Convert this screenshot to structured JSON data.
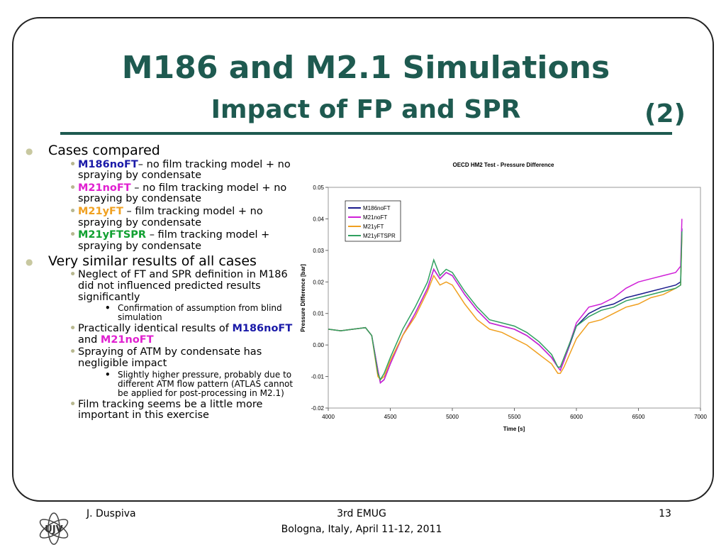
{
  "header": {
    "title": "M186 and M2.1 Simulations",
    "subtitle": "Impact of FP and SPR",
    "part": "(2)"
  },
  "bullets": [
    {
      "level": 1,
      "runs": [
        {
          "text": "Cases compared"
        }
      ]
    },
    {
      "level": 2,
      "runs": [
        {
          "text": "M186noFT",
          "color": "#1a1aa8"
        },
        {
          "text": "– no film tracking model + no spraying by condensate"
        }
      ]
    },
    {
      "level": 2,
      "runs": [
        {
          "text": "M21noFT",
          "color": "#e020d0"
        },
        {
          "text": " – no film tracking model + no spraying by condensate"
        }
      ]
    },
    {
      "level": 2,
      "runs": [
        {
          "text": "M21yFT",
          "color": "#f0a020"
        },
        {
          "text": " – film tracking model + no spraying by condensate"
        }
      ]
    },
    {
      "level": 2,
      "runs": [
        {
          "text": "M21yFTSPR",
          "color": "#10a030"
        },
        {
          "text": " – film tracking model + spraying by condensate"
        }
      ]
    },
    {
      "level": 1,
      "runs": [
        {
          "text": "Very similar results of all cases"
        }
      ]
    },
    {
      "level": 2,
      "runs": [
        {
          "text": "Neglect of FT and SPR definition in M186 did not influenced predicted results significantly"
        }
      ]
    },
    {
      "level": 3,
      "runs": [
        {
          "text": "Confirmation of assumption from blind simulation"
        }
      ]
    },
    {
      "level": 2,
      "runs": [
        {
          "text": "Practically identical results of "
        },
        {
          "text": "M186noFT",
          "color": "#1a1aa8"
        },
        {
          "text": " and "
        },
        {
          "text": "M21noFT",
          "color": "#e020d0"
        }
      ]
    },
    {
      "level": 2,
      "runs": [
        {
          "text": "Spraying of ATM by condensate has negligible impact"
        }
      ]
    },
    {
      "level": 3,
      "runs": [
        {
          "text": "Slightly higher pressure, probably due to different ATM flow pattern (ATLAS cannot be applied for post-processing in M2.1)"
        }
      ]
    },
    {
      "level": 2,
      "runs": [
        {
          "text": "Film tracking seems be a little more important in this exercise"
        }
      ]
    }
  ],
  "chart_data": {
    "type": "line",
    "title": "OECD HM2 Test - Pressure Difference",
    "xlabel": "Time [s]",
    "ylabel": "Pressure Difference [bar]",
    "x": [
      4000,
      4100,
      4200,
      4300,
      4350,
      4400,
      4420,
      4450,
      4500,
      4600,
      4700,
      4800,
      4850,
      4900,
      4950,
      5000,
      5100,
      5200,
      5300,
      5400,
      5500,
      5600,
      5700,
      5800,
      5850,
      5870,
      5900,
      6000,
      6100,
      6200,
      6300,
      6400,
      6500,
      6600,
      6700,
      6800,
      6840,
      6850
    ],
    "series": [
      {
        "name": "M186noFT",
        "color": "#1a1a8c",
        "values": [
          0.005,
          0.0045,
          0.005,
          0.0055,
          0.003,
          -0.008,
          -0.012,
          -0.011,
          -0.006,
          0.003,
          0.01,
          0.018,
          0.024,
          0.021,
          0.023,
          0.022,
          0.016,
          0.011,
          0.007,
          0.006,
          0.005,
          0.003,
          0.0,
          -0.004,
          -0.007,
          -0.008,
          -0.005,
          0.006,
          0.01,
          0.012,
          0.013,
          0.015,
          0.016,
          0.017,
          0.018,
          0.019,
          0.02,
          0.037
        ]
      },
      {
        "name": "M21noFT",
        "color": "#d020d8",
        "values": [
          0.005,
          0.0045,
          0.005,
          0.0055,
          0.003,
          -0.008,
          -0.012,
          -0.011,
          -0.006,
          0.003,
          0.01,
          0.018,
          0.024,
          0.021,
          0.023,
          0.022,
          0.016,
          0.011,
          0.007,
          0.006,
          0.005,
          0.003,
          0.0,
          -0.004,
          -0.007,
          -0.008,
          -0.005,
          0.007,
          0.012,
          0.013,
          0.015,
          0.018,
          0.02,
          0.021,
          0.022,
          0.023,
          0.025,
          0.04
        ]
      },
      {
        "name": "M21yFT",
        "color": "#f0a020",
        "values": [
          0.005,
          0.0045,
          0.005,
          0.0055,
          0.003,
          -0.01,
          -0.011,
          -0.01,
          -0.005,
          0.003,
          0.009,
          0.017,
          0.022,
          0.019,
          0.02,
          0.019,
          0.013,
          0.008,
          0.005,
          0.004,
          0.002,
          0.0,
          -0.003,
          -0.006,
          -0.009,
          -0.009,
          -0.007,
          0.002,
          0.007,
          0.008,
          0.01,
          0.012,
          0.013,
          0.015,
          0.016,
          0.018,
          0.019,
          0.035
        ]
      },
      {
        "name": "M21yFTSPR",
        "color": "#30a060",
        "values": [
          0.005,
          0.0045,
          0.005,
          0.0055,
          0.003,
          -0.009,
          -0.011,
          -0.009,
          -0.004,
          0.005,
          0.012,
          0.02,
          0.027,
          0.022,
          0.024,
          0.023,
          0.017,
          0.012,
          0.008,
          0.007,
          0.006,
          0.004,
          0.001,
          -0.003,
          -0.007,
          -0.007,
          -0.004,
          0.006,
          0.009,
          0.011,
          0.012,
          0.014,
          0.015,
          0.016,
          0.017,
          0.018,
          0.019,
          0.036
        ]
      }
    ],
    "xlim": [
      4000,
      7000
    ],
    "xticks": [
      4000,
      4500,
      5000,
      5500,
      6000,
      6500,
      7000
    ],
    "ylim": [
      -0.02,
      0.05
    ],
    "yticks": [
      0.05,
      0.04,
      0.03,
      0.02,
      0.01,
      {
        "value": 0,
        "label": "0.00"
      },
      -0.01,
      -0.02
    ],
    "legend": "upper left"
  },
  "footer": {
    "author": "J. Duspiva",
    "event": "3rd EMUG",
    "place": "Bologna, Italy, April 11-12, 2011",
    "page": "13",
    "logo": "UJV"
  }
}
